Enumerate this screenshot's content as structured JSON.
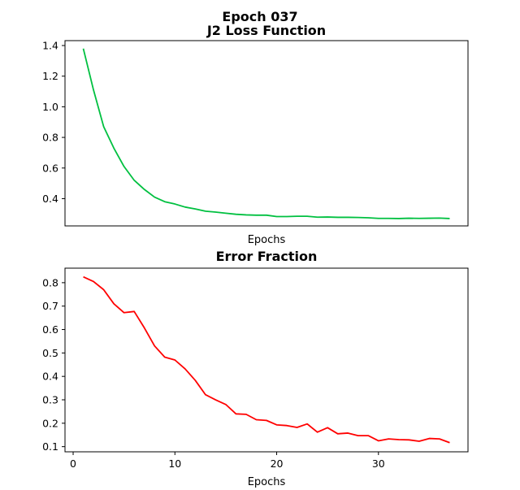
{
  "figure": {
    "suptitle": "Epoch 037"
  },
  "chart_data": [
    {
      "type": "line",
      "title": "J2 Loss Function",
      "xlabel": "Epochs",
      "ylabel": "",
      "xlim": [
        -0.8,
        38.8
      ],
      "ylim": [
        0.222,
        1.432
      ],
      "x_ticks": [],
      "y_ticks": [
        0.4,
        0.6,
        0.8,
        1.0,
        1.2,
        1.4
      ],
      "y_tick_labels": [
        "0.4",
        "0.6",
        "0.8",
        "1.0",
        "1.2",
        "1.4"
      ],
      "grid": false,
      "series": [
        {
          "color": "#00c040",
          "x": [
            1,
            2,
            3,
            4,
            5,
            6,
            7,
            8,
            9,
            10,
            11,
            12,
            13,
            14,
            15,
            16,
            17,
            18,
            19,
            20,
            21,
            22,
            23,
            24,
            25,
            26,
            27,
            28,
            29,
            30,
            31,
            32,
            33,
            34,
            35,
            36,
            37
          ],
          "y": [
            1.38,
            1.11,
            0.87,
            0.73,
            0.61,
            0.52,
            0.46,
            0.41,
            0.38,
            0.365,
            0.345,
            0.333,
            0.318,
            0.312,
            0.305,
            0.298,
            0.294,
            0.292,
            0.292,
            0.283,
            0.283,
            0.285,
            0.285,
            0.279,
            0.28,
            0.278,
            0.278,
            0.277,
            0.275,
            0.271,
            0.271,
            0.27,
            0.272,
            0.271,
            0.272,
            0.273,
            0.27
          ]
        }
      ]
    },
    {
      "type": "line",
      "title": "Error Fraction",
      "xlabel": "Epochs",
      "ylabel": "",
      "xlim": [
        -0.8,
        38.8
      ],
      "ylim": [
        0.078,
        0.862
      ],
      "x_ticks": [
        0,
        10,
        20,
        30
      ],
      "x_tick_labels": [
        "0",
        "10",
        "20",
        "30"
      ],
      "y_ticks": [
        0.1,
        0.2,
        0.3,
        0.4,
        0.5,
        0.6,
        0.7,
        0.8
      ],
      "y_tick_labels": [
        "0.1",
        "0.2",
        "0.3",
        "0.4",
        "0.5",
        "0.6",
        "0.7",
        "0.8"
      ],
      "grid": false,
      "series": [
        {
          "color": "#ff0000",
          "x": [
            1,
            2,
            3,
            4,
            5,
            6,
            7,
            8,
            9,
            10,
            11,
            12,
            13,
            14,
            15,
            16,
            17,
            18,
            19,
            20,
            21,
            22,
            23,
            24,
            25,
            26,
            27,
            28,
            29,
            30,
            31,
            32,
            33,
            34,
            35,
            36,
            37
          ],
          "y": [
            0.825,
            0.805,
            0.77,
            0.71,
            0.672,
            0.677,
            0.607,
            0.53,
            0.482,
            0.47,
            0.432,
            0.383,
            0.322,
            0.3,
            0.28,
            0.24,
            0.238,
            0.215,
            0.212,
            0.193,
            0.19,
            0.182,
            0.197,
            0.162,
            0.181,
            0.155,
            0.158,
            0.147,
            0.147,
            0.125,
            0.133,
            0.13,
            0.129,
            0.123,
            0.135,
            0.133,
            0.117
          ]
        }
      ]
    }
  ]
}
